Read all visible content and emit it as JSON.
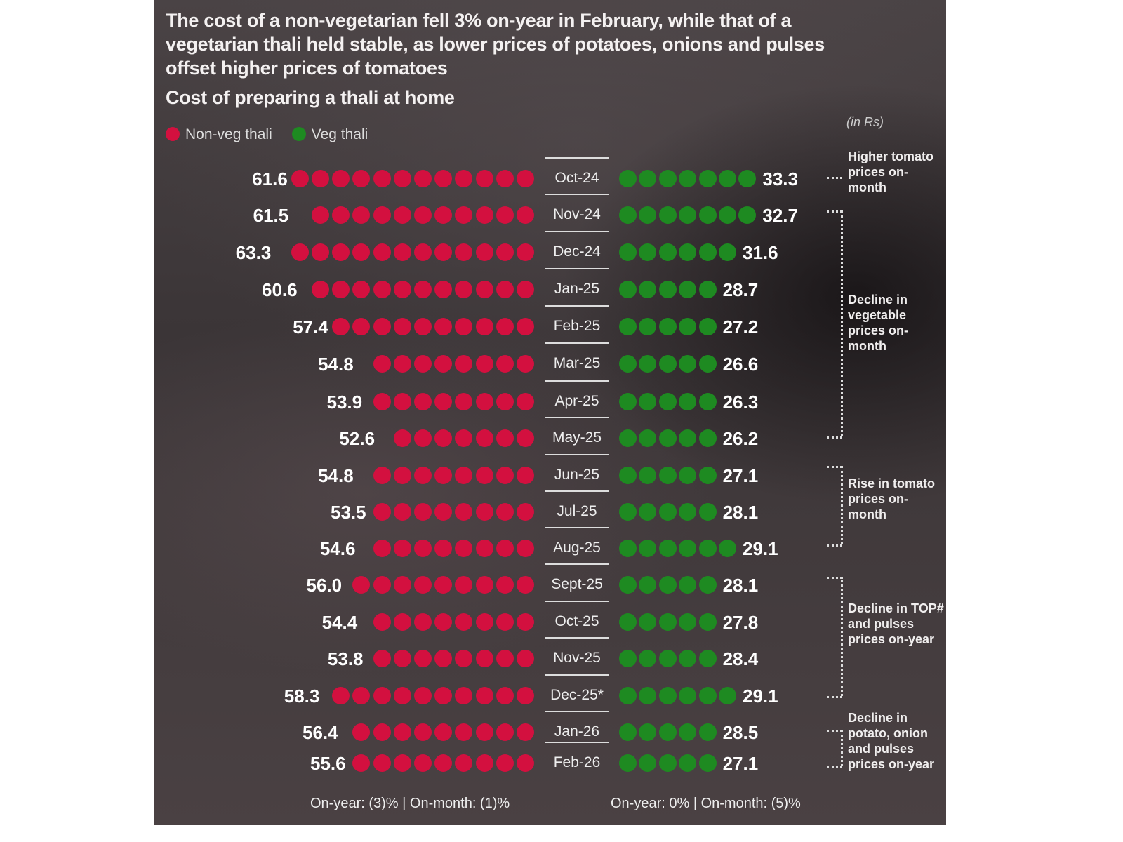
{
  "title": "The cost of a non-vegetarian fell 3% on-year in February, while that of a vegetarian thali held stable, as lower prices of potatoes, onions and pulses offset higher prices of tomatoes",
  "subtitle": "Cost of preparing a thali at home",
  "unit": "(in Rs)",
  "colors": {
    "non_veg": "#d3103f",
    "veg": "#1e8a21"
  },
  "chart_data": {
    "type": "bar",
    "title": "Cost of preparing a thali at home",
    "ylabel": "(in Rs)",
    "legend_placement": "top-left",
    "categories": [
      "Oct-24",
      "Nov-24",
      "Dec-24",
      "Jan-25",
      "Feb-25",
      "Mar-25",
      "Apr-25",
      "May-25",
      "Jun-25",
      "Jul-25",
      "Aug-25",
      "Sept-25",
      "Oct-25",
      "Nov-25",
      "Dec-25*",
      "Jan-26",
      "Feb-26"
    ],
    "series": [
      {
        "name": "Non-veg thali",
        "values": [
          "61.6",
          "61.5",
          "63.3",
          "60.6",
          "57.4",
          "54.8",
          "53.9",
          "52.6",
          "54.8",
          "53.5",
          "54.6",
          "56.0",
          "54.4",
          "53.8",
          "58.3",
          "56.4",
          "55.6"
        ]
      },
      {
        "name": "Veg thali",
        "values": [
          "33.3",
          "32.7",
          "31.6",
          "28.7",
          "27.2",
          "26.6",
          "26.3",
          "26.2",
          "27.1",
          "28.1",
          "29.1",
          "28.1",
          "27.8",
          "28.4",
          "29.1",
          "28.5",
          "27.1"
        ]
      }
    ],
    "annotations": [
      "Higher tomato prices on-month",
      "Decline in vegetable prices on-month",
      "Rise in tomato prices on-month",
      "Decline in TOP# and pulses prices on-year",
      "Decline in potato, onion and pulses prices on-year"
    ],
    "footer": {
      "non_veg": "On-year: (3)% | On-month: (1)%",
      "veg": "On-year: 0% | On-month: (5)%"
    }
  }
}
